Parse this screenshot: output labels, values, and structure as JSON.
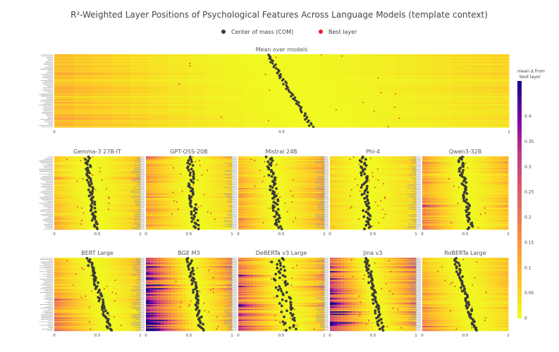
{
  "chart_data": {
    "type": "heatmap",
    "title": "R²-Weighted Layer Positions of Psychological Features Across Language Models (template context)",
    "legend": [
      {
        "label": "Center of mass (COM)",
        "color": "#3b3b3b"
      },
      {
        "label": "Best layer",
        "color": "#e8192c"
      }
    ],
    "colorbar": {
      "title_line1": "mean Δ from",
      "title_line2": "best layer",
      "range": [
        0,
        0.47
      ],
      "ticks": [
        "0",
        "0.05",
        "0.1",
        "0.15",
        "0.2",
        "0.25",
        "0.3",
        "0.35",
        "0.4"
      ],
      "colorscale": "plasma_r"
    },
    "x_range": [
      0,
      1
    ],
    "x_ticks": [
      "0",
      "0.5",
      "1"
    ],
    "n_features": 60,
    "panels": [
      {
        "name": "Mean over models",
        "com_start": 0.47,
        "com_end": 0.565,
        "jitter": 0.005,
        "depth": 0.12
      },
      {
        "name": "Gemma-3 27B-IT",
        "com_start": 0.38,
        "com_end": 0.48,
        "jitter": 0.03,
        "depth": 0.14
      },
      {
        "name": "GPT-OSS-20B",
        "com_start": 0.5,
        "com_end": 0.58,
        "jitter": 0.04,
        "depth": 0.16
      },
      {
        "name": "Mistral 24B",
        "com_start": 0.36,
        "com_end": 0.47,
        "jitter": 0.04,
        "depth": 0.2
      },
      {
        "name": "Phi-4",
        "com_start": 0.38,
        "com_end": 0.44,
        "jitter": 0.04,
        "depth": 0.1
      },
      {
        "name": "Qwen3-32B",
        "com_start": 0.44,
        "com_end": 0.56,
        "jitter": 0.03,
        "depth": 0.22
      },
      {
        "name": "BERT Large",
        "com_start": 0.4,
        "com_end": 0.65,
        "jitter": 0.03,
        "depth": 0.18
      },
      {
        "name": "BGE M3",
        "com_start": 0.5,
        "com_end": 0.65,
        "jitter": 0.03,
        "depth": 0.42
      },
      {
        "name": "DeBERTa v3 Large",
        "com_start": 0.45,
        "com_end": 0.6,
        "jitter": 0.08,
        "depth": 0.32
      },
      {
        "name": "Jina v3",
        "com_start": 0.42,
        "com_end": 0.6,
        "jitter": 0.03,
        "depth": 0.45
      },
      {
        "name": "RoBERTa Large",
        "com_start": 0.38,
        "com_end": 0.62,
        "jitter": 0.03,
        "depth": 0.16
      }
    ]
  }
}
